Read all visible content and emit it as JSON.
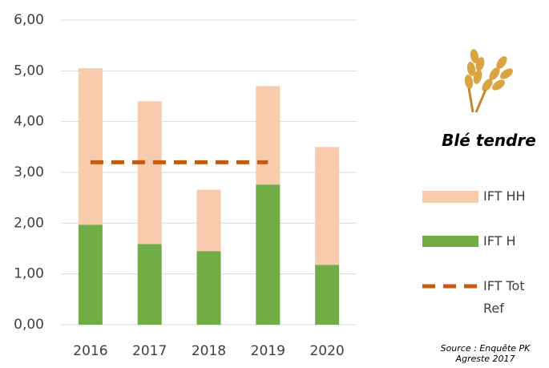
{
  "chart_data": {
    "type": "bar",
    "stacked": true,
    "title": "Blé tendre",
    "categories": [
      "2016",
      "2017",
      "2018",
      "2019",
      "2020"
    ],
    "series": [
      {
        "name": "IFT HH",
        "color": "#f8cbad",
        "values": [
          3.08,
          2.81,
          1.21,
          1.94,
          2.32
        ]
      },
      {
        "name": "IFT H",
        "color": "#70ad47",
        "values": [
          1.97,
          1.59,
          1.45,
          2.76,
          1.18
        ]
      },
      {
        "name": "IFT Tot Ref",
        "type": "line",
        "dashed": true,
        "color": "#c55a11",
        "values": [
          3.2,
          3.2,
          3.2,
          3.2,
          null
        ]
      }
    ],
    "ylim": [
      0,
      6
    ],
    "yticks": [
      {
        "value": 0,
        "label": "0,00"
      },
      {
        "value": 1,
        "label": "1,00"
      },
      {
        "value": 2,
        "label": "2,00"
      },
      {
        "value": 3,
        "label": "3,00"
      },
      {
        "value": 4,
        "label": "4,00"
      },
      {
        "value": 5,
        "label": "5,00"
      },
      {
        "value": 6,
        "label": "6,00"
      }
    ],
    "grid": true,
    "source": "Source : Enquête PK Agreste 2017"
  }
}
